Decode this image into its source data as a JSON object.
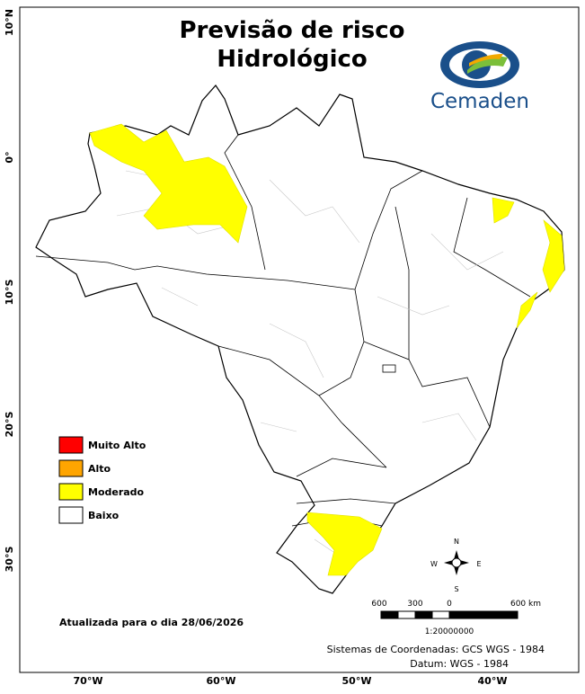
{
  "title": [
    "Previsão de risco",
    "Hidrológico"
  ],
  "logo": "Cemaden",
  "legend": [
    {
      "label": "Muito Alto",
      "color": "#ff0000"
    },
    {
      "label": "Alto",
      "color": "#ffa500"
    },
    {
      "label": "Moderado",
      "color": "#ffff00"
    },
    {
      "label": "Baixo",
      "color": "#ffffff"
    }
  ],
  "lat_labels": [
    "10°N",
    "0°",
    "10°S",
    "20°S",
    "30°S"
  ],
  "lon_labels": [
    "70°W",
    "60°W",
    "50°W",
    "40°W"
  ],
  "scale": {
    "labels": [
      "600",
      "300",
      "0",
      "600 km"
    ],
    "ratio": "1:20000000"
  },
  "compass": {
    "n": "N",
    "s": "S",
    "e": "E",
    "w": "W"
  },
  "updated": "Atualizada para o dia 28/06/2026",
  "crs": [
    "Sistemas de Coordenadas: GCS WGS - 1984",
    "Datum: WGS - 1984"
  ]
}
